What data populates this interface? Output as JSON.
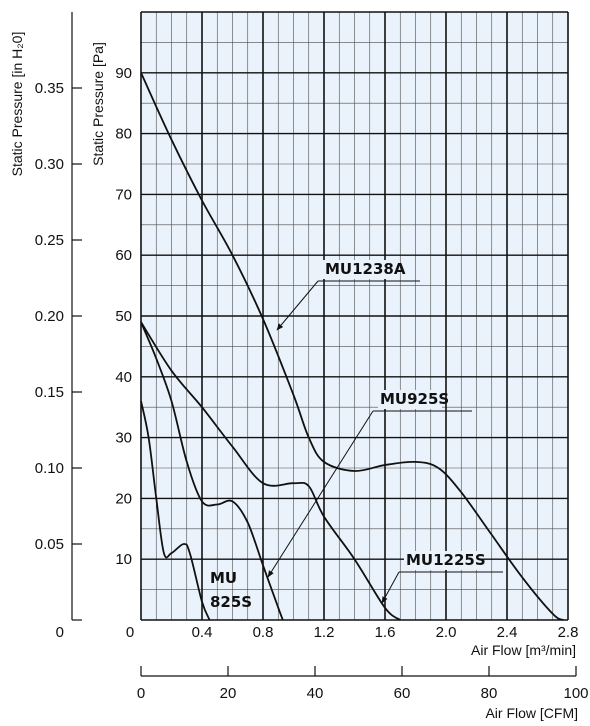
{
  "chart_data": {
    "type": "line",
    "x_primary": {
      "label": "Air Flow [m³/min]",
      "ticks": [
        "0",
        "0.4",
        "0.8",
        "1.2",
        "1.6",
        "2.0",
        "2.4",
        "2.8"
      ],
      "range": [
        0,
        2.8
      ]
    },
    "x_secondary": {
      "label": "Air Flow [CFM]",
      "ticks": [
        "0",
        "20",
        "40",
        "60",
        "80",
        "100"
      ],
      "range": [
        0,
        100
      ]
    },
    "y_primary": {
      "label": "Static Pressure [Pa]",
      "ticks": [
        "0",
        "10",
        "20",
        "30",
        "40",
        "50",
        "60",
        "70",
        "80",
        "90"
      ],
      "range": [
        0,
        100
      ]
    },
    "y_secondary": {
      "label": "Static Pressure [in H₂0]",
      "ticks": [
        "0",
        "0.05",
        "0.10",
        "0.15",
        "0.20",
        "0.25",
        "0.30",
        "0.35"
      ],
      "range": [
        0,
        0.4
      ]
    },
    "grid": true,
    "background": "#eaf3fb",
    "series": [
      {
        "name": "MU1238A",
        "points": [
          [
            0,
            90
          ],
          [
            0.2,
            79
          ],
          [
            0.4,
            69
          ],
          [
            0.6,
            60
          ],
          [
            0.8,
            49.5
          ],
          [
            1.0,
            37
          ],
          [
            1.1,
            30
          ],
          [
            1.2,
            26
          ],
          [
            1.4,
            24.5
          ],
          [
            1.6,
            25.5
          ],
          [
            1.8,
            26
          ],
          [
            1.95,
            25
          ],
          [
            2.1,
            21
          ],
          [
            2.3,
            14
          ],
          [
            2.5,
            7
          ],
          [
            2.7,
            1
          ],
          [
            2.77,
            0
          ]
        ]
      },
      {
        "name": "MU1225S",
        "points": [
          [
            0,
            49
          ],
          [
            0.2,
            41
          ],
          [
            0.4,
            35
          ],
          [
            0.6,
            28.5
          ],
          [
            0.8,
            22.5
          ],
          [
            1.0,
            22.5
          ],
          [
            1.1,
            22
          ],
          [
            1.2,
            17
          ],
          [
            1.4,
            10
          ],
          [
            1.6,
            2
          ],
          [
            1.7,
            0
          ]
        ]
      },
      {
        "name": "MU925S",
        "points": [
          [
            0,
            49
          ],
          [
            0.1,
            43
          ],
          [
            0.2,
            36
          ],
          [
            0.3,
            26
          ],
          [
            0.4,
            19.5
          ],
          [
            0.5,
            19
          ],
          [
            0.6,
            19.5
          ],
          [
            0.7,
            16
          ],
          [
            0.8,
            9
          ],
          [
            0.9,
            2
          ],
          [
            0.93,
            0
          ]
        ]
      },
      {
        "name": "MU 825S",
        "label_lines": [
          "MU",
          "825S"
        ],
        "points": [
          [
            0,
            36
          ],
          [
            0.05,
            30
          ],
          [
            0.1,
            20
          ],
          [
            0.15,
            11
          ],
          [
            0.2,
            11
          ],
          [
            0.28,
            12.5
          ],
          [
            0.32,
            11
          ],
          [
            0.4,
            3
          ],
          [
            0.45,
            0
          ]
        ]
      }
    ]
  }
}
